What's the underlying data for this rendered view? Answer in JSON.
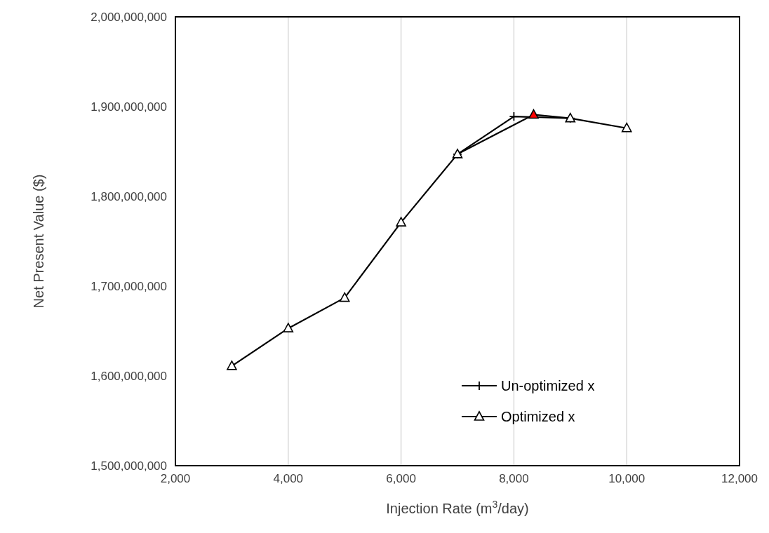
{
  "chart_data": {
    "type": "line",
    "xlabel": "Injection Rate (m$^{3}$/day)",
    "ylabel": "Net Present Value ($)",
    "xlim": [
      2000,
      12000
    ],
    "xticks": [
      {
        "value": 2000,
        "label": "2,000"
      },
      {
        "value": 4000,
        "label": "4,000"
      },
      {
        "value": 6000,
        "label": "6,000"
      },
      {
        "value": 8000,
        "label": "8,000"
      },
      {
        "value": 10000,
        "label": "10,000"
      },
      {
        "value": 12000,
        "label": "12,000"
      }
    ],
    "ylim": [
      1500000000,
      2000000000
    ],
    "yticks": [
      {
        "value": 1500000000,
        "label": "1,500,000,000"
      },
      {
        "value": 1600000000,
        "label": "1,600,000,000"
      },
      {
        "value": 1700000000,
        "label": "1,700,000,000"
      },
      {
        "value": 1800000000,
        "label": "1,800,000,000"
      },
      {
        "value": 1900000000,
        "label": "1,900,000,000"
      },
      {
        "value": 2000000000,
        "label": "2,000,000,000"
      }
    ],
    "grid": "x",
    "legend": "bottom right",
    "line_style": "solid",
    "series": [
      {
        "name": "Un-optimized x",
        "color": "#000000",
        "marker": "cross",
        "x": [
          7000,
          8000,
          9000
        ],
        "values": [
          1847000000,
          1889000000,
          1887000000
        ]
      },
      {
        "name": "Optimized x",
        "color": "#000000",
        "marker": "triangle",
        "x": [
          3000,
          4000,
          5000,
          6000,
          7000,
          8350,
          9000,
          10000
        ],
        "values": [
          1611000000,
          1653000000,
          1687000000,
          1771000000,
          1847000000,
          1891000000,
          1887000000,
          1876000000
        ],
        "colors": [
          "#ffffff",
          "#ffffff",
          "#ffffff",
          "#ffffff",
          "#ffffff",
          "#ff0000",
          "#ffffff",
          "#ffffff"
        ]
      }
    ]
  }
}
